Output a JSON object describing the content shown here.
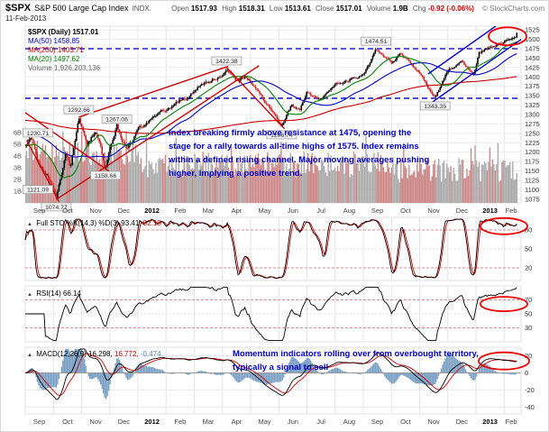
{
  "header": {
    "symbol": "$SPX",
    "name": "S&P 500 Large Cap Index",
    "exchange": "INDX.",
    "date": "11-Feb-2013",
    "quote": {
      "open_label": "Open",
      "open": "1517.93",
      "high_label": "High",
      "high": "1518.31",
      "low_label": "Low",
      "low": "1513.61",
      "close_label": "Close",
      "close": "1517.01",
      "volume_label": "Volume",
      "volume": "1.9B",
      "chg_label": "Chg",
      "chg": "-0.92 (-0.06%)"
    },
    "copyright": "© StockCharts.com"
  },
  "price_legend": {
    "price": "$SPX (Daily) 1517.01",
    "ma50": "MA(50) 1458.85",
    "ma200": "MA(200) 1403.71",
    "ma20": "MA(20) 1497.62",
    "volume": "Volume 1,926,203,136"
  },
  "panel_legends": {
    "stochastic": {
      "label": "Full STO %K(14,3) %D(3)",
      "k": "93.41,",
      "d": "92.18"
    },
    "rsi": {
      "label": "RSI(14) 66.14"
    },
    "macd": {
      "label": "MACD(12,26,9)",
      "macd": "16.298,",
      "signal": "16.772,",
      "hist": "-0.474"
    }
  },
  "annotations": {
    "price_note": "Index breaking firmly above resistance at 1475, opening the stage for a rally towards all-time highs of 1575.  Index remains within a defined rising channel.   Major moving averages pushing higher, implying a positive trend.",
    "momentum_note": "Momentum indicators rolling over from overbought territory, typically a signal to sell"
  },
  "chart_data": [
    {
      "panel": "price",
      "type": "candlestick",
      "title": "$SPX (Daily)",
      "last_close": 1517.01,
      "ohlc": {
        "open": 1517.93,
        "high": 1518.31,
        "low": 1513.61,
        "close": 1517.01,
        "volume": "1.9B",
        "change": "-0.92 (-0.06%)"
      },
      "x_axis": {
        "labels": [
          "Sep",
          "Oct",
          "Nov",
          "Dec",
          "2012",
          "Feb",
          "Mar",
          "Apr",
          "May",
          "Jun",
          "Jul",
          "Aug",
          "Sep",
          "Oct",
          "Nov",
          "Dec",
          "2013",
          "Feb"
        ],
        "bold_labels": [
          "2012",
          "2013"
        ]
      },
      "y_axis": {
        "min": 1065,
        "max": 1535,
        "tick_step": 25,
        "ticks": [
          1525,
          1500,
          1475,
          1450,
          1425,
          1400,
          1375,
          1350,
          1325,
          1300,
          1275,
          1250,
          1225,
          1200,
          1175,
          1150,
          1125,
          1100,
          1075
        ]
      },
      "volume_axis_labels": [
        "6B",
        "5B",
        "4B",
        "3B",
        "2B",
        "1B"
      ],
      "keypoints": [
        [
          0,
          1215
        ],
        [
          0.2,
          1230.71
        ],
        [
          0.5,
          1170
        ],
        [
          0.85,
          1131
        ],
        [
          1.1,
          1074.77
        ],
        [
          1.45,
          1190
        ],
        [
          1.6,
          1160
        ],
        [
          1.9,
          1292.66
        ],
        [
          2.2,
          1218
        ],
        [
          2.5,
          1262
        ],
        [
          2.85,
          1158.66
        ],
        [
          3.25,
          1267.06
        ],
        [
          3.6,
          1205
        ],
        [
          4.0,
          1257
        ],
        [
          4.5,
          1289
        ],
        [
          5.0,
          1312
        ],
        [
          5.5,
          1342
        ],
        [
          6.0,
          1365
        ],
        [
          6.5,
          1390
        ],
        [
          7.0,
          1408
        ],
        [
          7.15,
          1422.38
        ],
        [
          7.5,
          1385
        ],
        [
          7.8,
          1403
        ],
        [
          8.3,
          1365
        ],
        [
          8.7,
          1310
        ],
        [
          9.1,
          1266.74
        ],
        [
          9.45,
          1325
        ],
        [
          9.75,
          1310
        ],
        [
          10.0,
          1362
        ],
        [
          10.4,
          1338
        ],
        [
          11.0,
          1379
        ],
        [
          11.5,
          1395
        ],
        [
          12.0,
          1406
        ],
        [
          12.45,
          1474.51
        ],
        [
          13.0,
          1441
        ],
        [
          13.3,
          1460
        ],
        [
          14.0,
          1412
        ],
        [
          14.55,
          1343.35
        ],
        [
          15.0,
          1416
        ],
        [
          15.5,
          1448
        ],
        [
          15.9,
          1402
        ],
        [
          16.0,
          1426
        ],
        [
          16.1,
          1462
        ],
        [
          16.5,
          1480
        ],
        [
          17.0,
          1498
        ],
        [
          17.45,
          1517.01
        ]
      ],
      "callouts": [
        {
          "text": "1230.71",
          "t": 0.2,
          "price": 1230.71,
          "pos": "above"
        },
        {
          "text": "1121.09",
          "t": 0.08,
          "price": 1121.09,
          "pos": "below"
        },
        {
          "text": "1074.77",
          "t": 1.1,
          "price": 1074.77,
          "pos": "below"
        },
        {
          "text": "1292.66",
          "t": 1.9,
          "price": 1292.66,
          "pos": "above"
        },
        {
          "text": "1158.66",
          "t": 2.85,
          "price": 1158.66,
          "pos": "below"
        },
        {
          "text": "1267.06",
          "t": 3.25,
          "price": 1267.06,
          "pos": "above"
        },
        {
          "text": "1422.38",
          "t": 7.15,
          "price": 1422.38,
          "pos": "above"
        },
        {
          "text": "1266.74",
          "t": 9.1,
          "price": 1266.74,
          "pos": "below"
        },
        {
          "text": "1474.51",
          "t": 12.45,
          "price": 1474.51,
          "pos": "above"
        },
        {
          "text": "1343.35",
          "t": 14.55,
          "price": 1343.35,
          "pos": "below"
        }
      ],
      "moving_averages": [
        {
          "name": "MA(20)",
          "last": 1497.62,
          "period": 20
        },
        {
          "name": "MA(50)",
          "last": 1458.85,
          "period": 50
        },
        {
          "name": "MA(200)",
          "last": 1403.71,
          "period": 200
        }
      ],
      "ma_colors": {
        "ma20": "#008000",
        "ma50": "#0000cc",
        "ma200": "#cc0000"
      },
      "horizontal_lines": [
        {
          "price": 1475,
          "style": "dashed",
          "color": "#2222cc"
        },
        {
          "price": 1343.35,
          "style": "dashed",
          "color": "#2222cc"
        }
      ],
      "trendlines": [
        {
          "color": "#cc0000",
          "from": [
            0.0,
            1305
          ],
          "to": [
            3.0,
            1148
          ]
        },
        {
          "color": "#cc0000",
          "from": [
            0.05,
            1232
          ],
          "to": [
            1.2,
            1068
          ]
        },
        {
          "color": "#cc0000",
          "from": [
            1.1,
            1074
          ],
          "to": [
            8.3,
            1430
          ]
        },
        {
          "color": "#cc0000",
          "from": [
            1.9,
            1293
          ],
          "to": [
            7.2,
            1428
          ]
        },
        {
          "color": "#cc0000",
          "from": [
            7.15,
            1425
          ],
          "to": [
            9.2,
            1262
          ]
        },
        {
          "color": "#0000cc",
          "from": [
            14.3,
            1325
          ],
          "to": [
            17.7,
            1505
          ]
        },
        {
          "color": "#0000cc",
          "from": [
            14.3,
            1408
          ],
          "to": [
            17.7,
            1588
          ]
        }
      ],
      "highlight": {
        "t": 17.12,
        "price": 1508
      }
    },
    {
      "panel": "stochastic",
      "type": "line",
      "label": "Full STO %K(14,3) %D(3)",
      "k": 93.41,
      "d": 92.18,
      "ylim": [
        0,
        100
      ],
      "ticks": [
        80,
        50,
        20
      ],
      "colors": {
        "k": "#000000",
        "d": "#cc0000"
      }
    },
    {
      "panel": "rsi",
      "type": "line",
      "label": "RSI(14)",
      "value": 66.14,
      "ylim": [
        10,
        90
      ],
      "ticks": [
        70,
        50,
        30
      ],
      "color": "#000000"
    },
    {
      "panel": "macd",
      "type": "line+histogram",
      "label": "MACD(12,26,9)",
      "macd": 16.298,
      "signal": 16.772,
      "hist": -0.474,
      "ylim": [
        -48,
        30
      ],
      "ticks": [
        20,
        0,
        -20,
        -40
      ],
      "colors": {
        "macd": "#000000",
        "signal": "#cc0000",
        "hist": "#7aa0c4"
      }
    }
  ]
}
